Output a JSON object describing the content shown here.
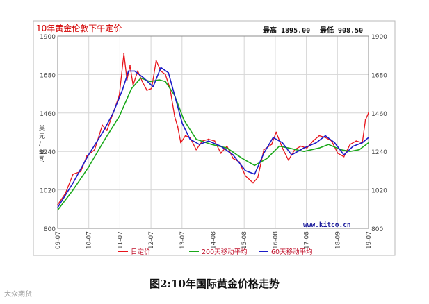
{
  "chart_data": {
    "type": "line",
    "title": "10年黄金伦敦下午定价",
    "high_label": "最高 1895.00",
    "low_label": "最低 908.50",
    "ylabel": "美元/盎司",
    "ylim": [
      800,
      1900
    ],
    "yticks": [
      800,
      1020,
      1240,
      1460,
      1680,
      1900
    ],
    "x_ticks": [
      "09-07",
      "10-07",
      "11-07",
      "12-07",
      "13-07",
      "14-08",
      "15-08",
      "16-08",
      "17-08",
      "18-09",
      "19-07"
    ],
    "x_domain": [
      2009.5,
      2019.6
    ],
    "grid": true,
    "source": "www.kitco.cn",
    "legend_position": "bottom",
    "series": [
      {
        "name": "日定价",
        "color": "#e8141b",
        "x": [
          2009.5,
          2009.75,
          2010.0,
          2010.25,
          2010.45,
          2010.7,
          2010.95,
          2011.1,
          2011.3,
          2011.5,
          2011.65,
          2011.75,
          2011.85,
          2011.95,
          2012.1,
          2012.25,
          2012.4,
          2012.55,
          2012.7,
          2012.85,
          2013.0,
          2013.15,
          2013.3,
          2013.4,
          2013.5,
          2013.65,
          2013.8,
          2014.0,
          2014.2,
          2014.4,
          2014.6,
          2014.8,
          2015.0,
          2015.2,
          2015.4,
          2015.6,
          2015.85,
          2016.0,
          2016.2,
          2016.45,
          2016.6,
          2016.8,
          2017.0,
          2017.2,
          2017.4,
          2017.6,
          2017.8,
          2018.0,
          2018.2,
          2018.4,
          2018.6,
          2018.8,
          2019.0,
          2019.2,
          2019.4,
          2019.5,
          2019.6
        ],
        "values": [
          935,
          1000,
          1110,
          1125,
          1215,
          1250,
          1390,
          1360,
          1460,
          1560,
          1800,
          1650,
          1730,
          1620,
          1700,
          1640,
          1590,
          1600,
          1760,
          1700,
          1680,
          1600,
          1440,
          1380,
          1290,
          1330,
          1320,
          1250,
          1300,
          1310,
          1300,
          1230,
          1270,
          1200,
          1180,
          1100,
          1060,
          1090,
          1250,
          1280,
          1350,
          1260,
          1190,
          1250,
          1270,
          1260,
          1300,
          1330,
          1320,
          1300,
          1230,
          1210,
          1280,
          1300,
          1290,
          1420,
          1460
        ]
      },
      {
        "name": "200天移动平均",
        "color": "#1aa81a",
        "x": [
          2009.5,
          2010.0,
          2010.5,
          2011.0,
          2011.5,
          2011.9,
          2012.2,
          2012.5,
          2012.8,
          2013.0,
          2013.3,
          2013.6,
          2014.0,
          2014.5,
          2015.0,
          2015.5,
          2015.9,
          2016.3,
          2016.7,
          2017.0,
          2017.5,
          2018.0,
          2018.3,
          2018.7,
          2019.0,
          2019.3,
          2019.6
        ],
        "values": [
          905,
          1020,
          1150,
          1300,
          1440,
          1600,
          1660,
          1640,
          1650,
          1640,
          1560,
          1420,
          1310,
          1280,
          1260,
          1200,
          1160,
          1200,
          1270,
          1260,
          1240,
          1260,
          1280,
          1250,
          1240,
          1250,
          1290
        ]
      },
      {
        "name": "60天移动平均",
        "color": "#1c1cc8",
        "x": [
          2009.5,
          2010.0,
          2010.5,
          2011.0,
          2011.3,
          2011.6,
          2011.8,
          2012.0,
          2012.3,
          2012.6,
          2012.85,
          2013.1,
          2013.3,
          2013.55,
          2013.8,
          2014.1,
          2014.4,
          2014.8,
          2015.2,
          2015.6,
          2015.9,
          2016.2,
          2016.5,
          2016.8,
          2017.1,
          2017.5,
          2017.9,
          2018.2,
          2018.5,
          2018.8,
          2019.1,
          2019.4,
          2019.6
        ],
        "values": [
          920,
          1060,
          1220,
          1360,
          1460,
          1590,
          1700,
          1700,
          1660,
          1610,
          1720,
          1690,
          1560,
          1400,
          1310,
          1280,
          1300,
          1270,
          1220,
          1130,
          1110,
          1230,
          1320,
          1290,
          1220,
          1260,
          1290,
          1330,
          1290,
          1220,
          1270,
          1290,
          1320
        ]
      }
    ]
  },
  "caption": "图2:10年国际黄金价格走势",
  "watermark": "大众期货"
}
